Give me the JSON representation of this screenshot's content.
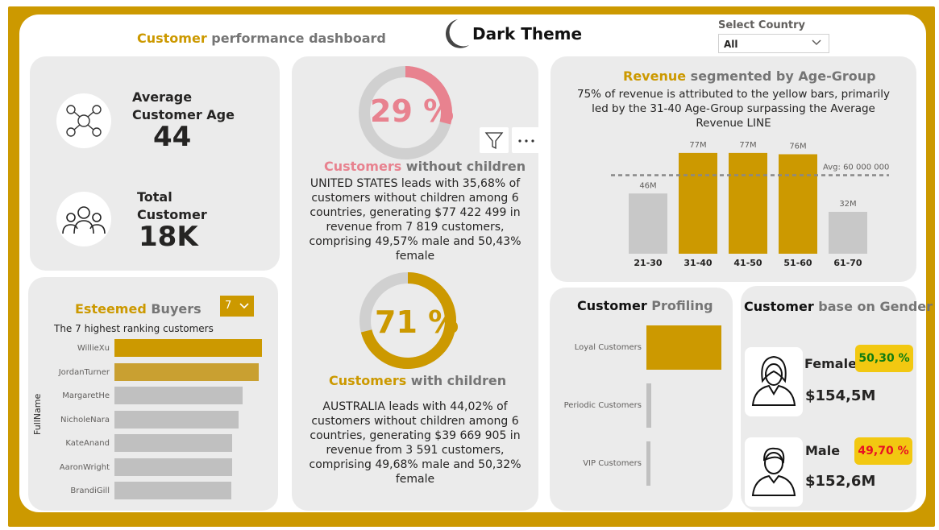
{
  "header": {
    "title_accent": "Customer",
    "title_rest": " performance dashboard",
    "theme_label": "Dark Theme",
    "country_label": "Select Country",
    "country_value": "All"
  },
  "kpi": {
    "age_label_1": "Average",
    "age_label_2": "Customer Age",
    "age_value": "44",
    "total_label_1": "Total",
    "total_label_2": "Customer",
    "total_value": "18K"
  },
  "without_children": {
    "percent_label": "29 %",
    "percent": 29,
    "title_accent": "Customers",
    "title_rest": " without children",
    "text": "UNITED STATES leads with 35,68% of customers without children among 6 countries, generating $77 422 499 in revenue from 7 819 customers, comprising 49,57% male and 50,43% female"
  },
  "with_children": {
    "percent_label": "71 %",
    "percent": 71,
    "title_accent": "Customers",
    "title_rest": " with children",
    "text": "AUSTRALIA leads with 44,02% of customers without children among 6 countries, generating $39 669 905 in revenue from 3 591 customers, comprising 49,68% male and 50,32% female"
  },
  "revenue": {
    "title_accent": "Revenue",
    "title_rest": " segmented by Age-Group",
    "subtitle": "75% of revenue is attributed to the yellow bars, primarily led by the 31-40 Age-Group surpassing the Average Revenue LINE",
    "avg_label": "Avg: 60 000 000"
  },
  "buyers": {
    "title_accent": "Esteemed",
    "title_rest": " Buyers",
    "selector_value": "7",
    "subtitle": "The 7 highest ranking customers",
    "axis_label": "FullName"
  },
  "profiling": {
    "title_accent": "Customer",
    "title_rest": " Profiling"
  },
  "gender": {
    "title_accent": "Customer",
    "title_rest": " base on Gender",
    "female_label": "Female",
    "female_pct": "50,30 %",
    "female_value": "$154,5M",
    "male_label": "Male",
    "male_pct": "49,70 %",
    "male_value": "$152,6M"
  },
  "colors": {
    "accent": "#cc9900",
    "pink": "#e8828f",
    "grey_bar": "#c8c8c8",
    "badge": "#f2c811",
    "female_pct_color": "#107c10",
    "male_pct_color": "#e81123"
  },
  "chart_data": [
    {
      "type": "bar",
      "categories": [
        "21-30",
        "31-40",
        "41-50",
        "51-60",
        "61-70"
      ],
      "values": [
        46,
        77,
        77,
        76,
        32
      ],
      "data_labels": [
        "46M",
        "77M",
        "77M",
        "76M",
        "32M"
      ],
      "highlighted": [
        false,
        true,
        true,
        true,
        false
      ],
      "reference_line": 60,
      "ylim": [
        0,
        80
      ]
    },
    {
      "type": "bar",
      "orientation": "horizontal",
      "categories": [
        "WillieXu",
        "JordanTurner",
        "MargaretHe",
        "NicholeNara",
        "KateAnand",
        "AaronWright",
        "BrandiGill"
      ],
      "values": [
        100,
        98,
        87,
        84,
        80,
        80,
        79
      ],
      "ylabel": "FullName"
    },
    {
      "type": "bar",
      "orientation": "horizontal",
      "categories": [
        "Loyal Customers",
        "Periodic Customers",
        "VIP Customers"
      ],
      "values": [
        100,
        6,
        5
      ]
    }
  ]
}
